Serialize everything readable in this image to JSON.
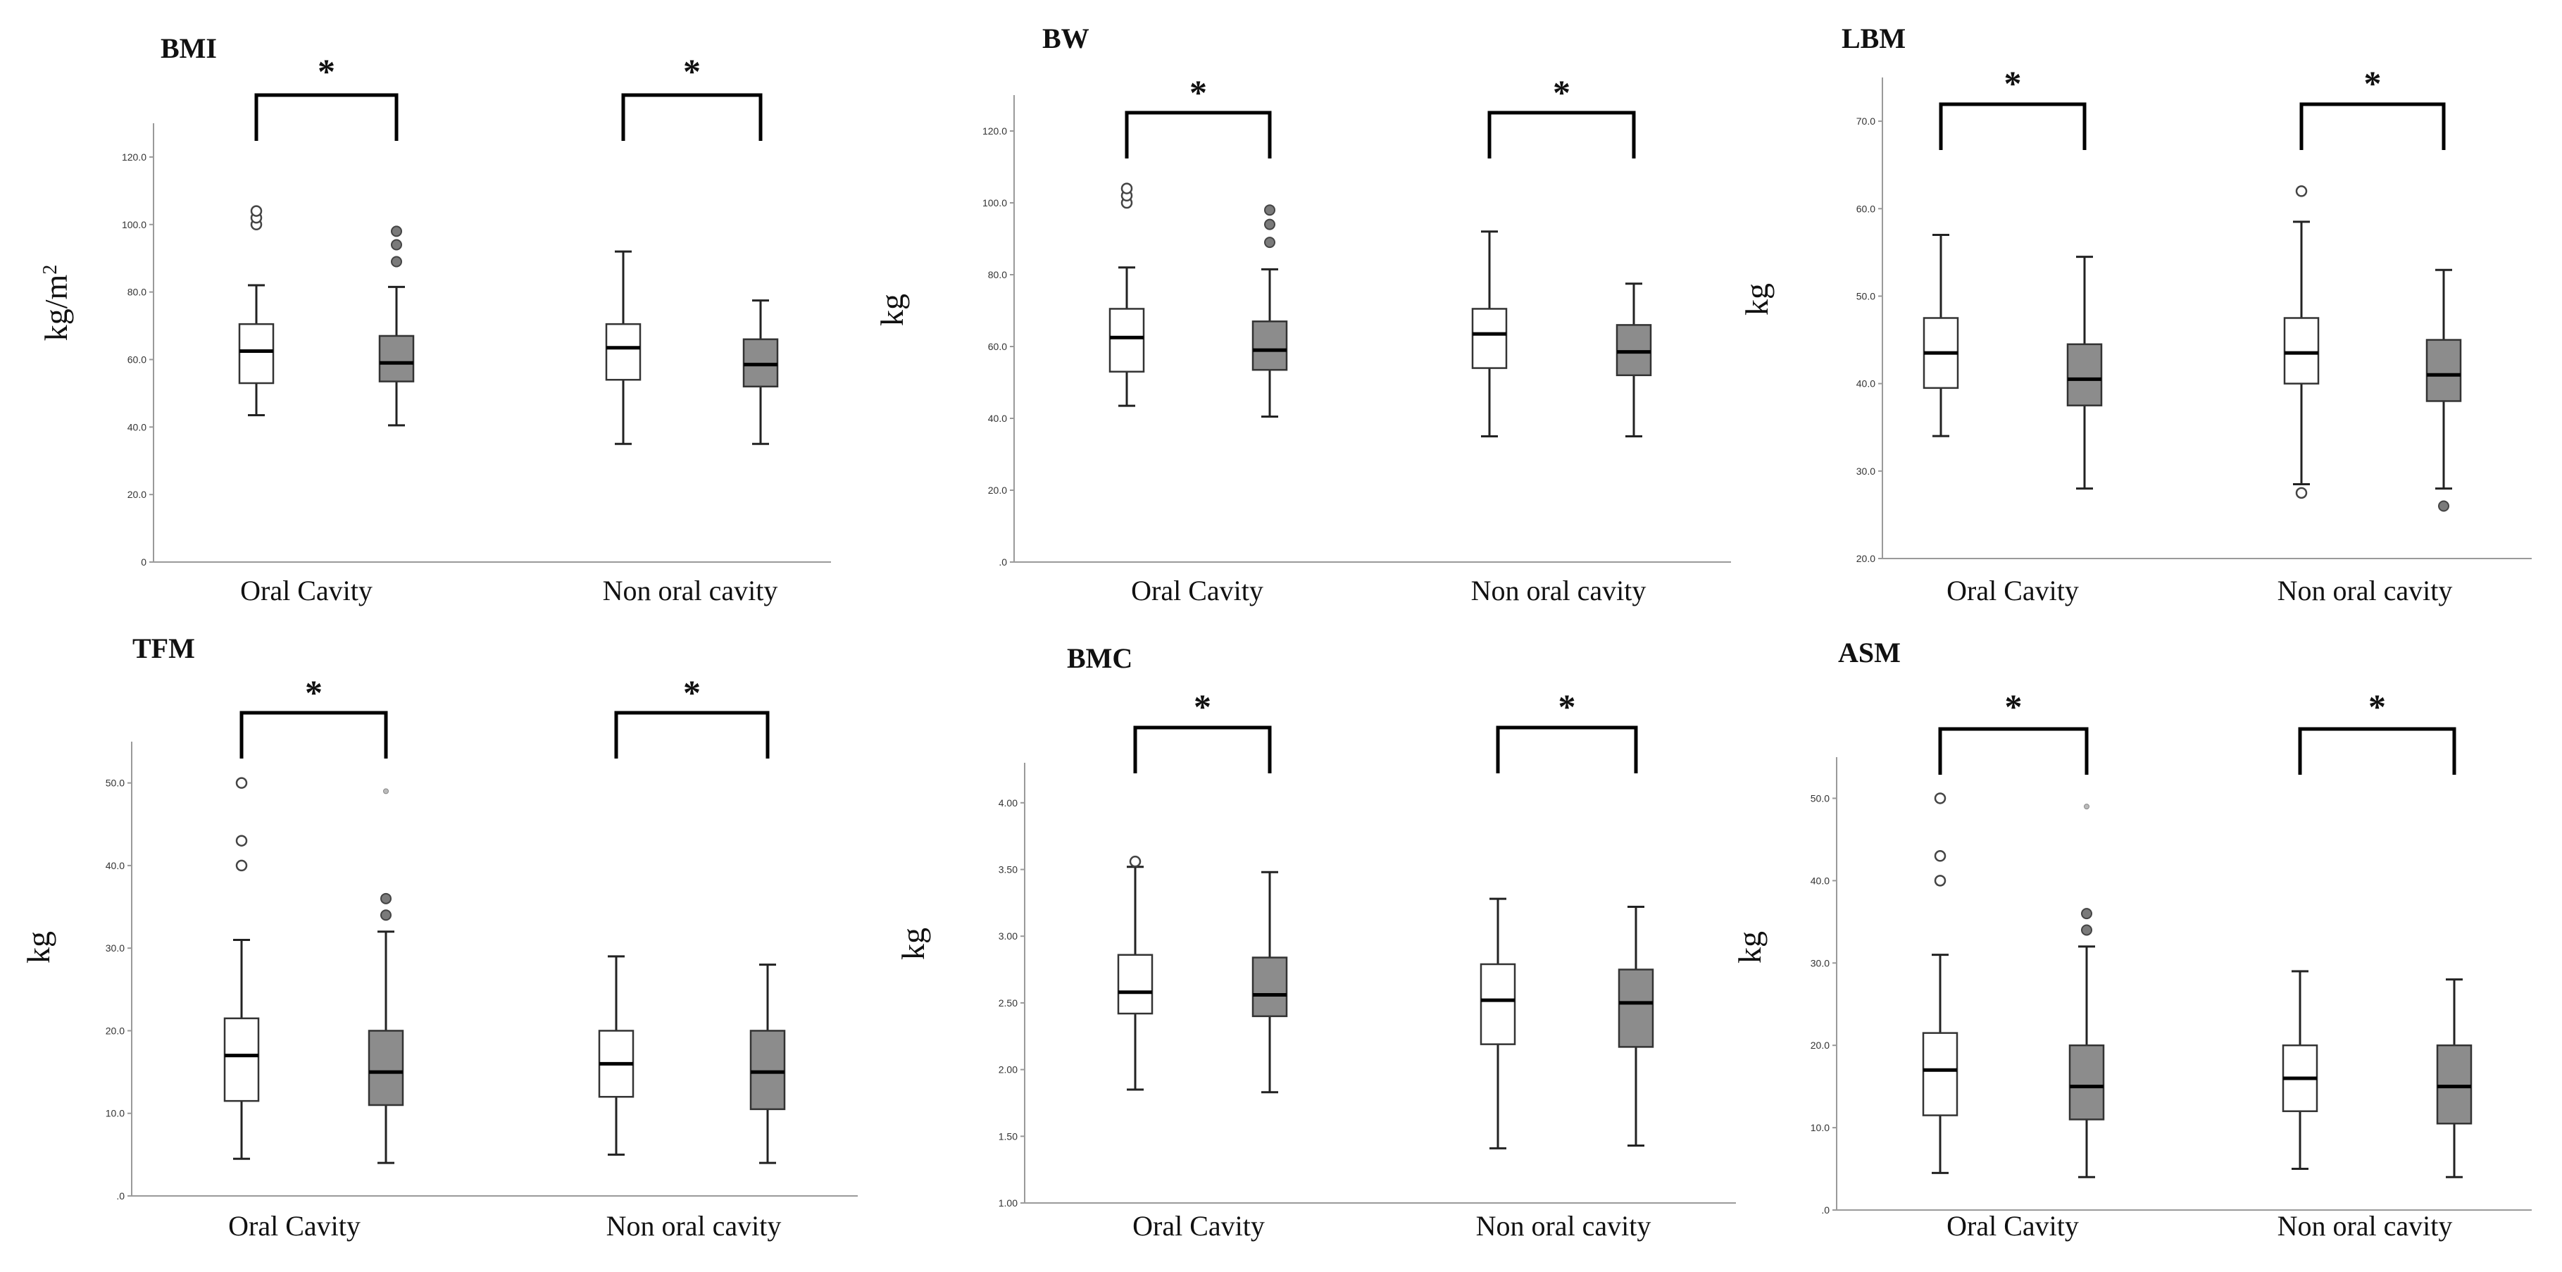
{
  "chart_data": [
    {
      "type": "box",
      "title": "BMI",
      "ylabel": "kg/m",
      "ylabel_sup": "2",
      "ylim": [
        0,
        130
      ],
      "yticks": [
        0,
        20,
        40,
        60,
        80,
        100,
        120
      ],
      "ytick_labels": [
        "0",
        "20.0",
        "40.0",
        "60.0",
        "80.0",
        "100.0",
        "120.0"
      ],
      "categories": [
        "Oral Cavity",
        "Non oral cavity"
      ],
      "significance": [
        "*",
        "*"
      ],
      "boxes": [
        {
          "group": "Oral Cavity",
          "shade": "light",
          "min": 43.5,
          "q1": 53,
          "median": 62.5,
          "q3": 70.5,
          "max": 82,
          "outliers": [
            100,
            102,
            104
          ],
          "outlier_style": "open"
        },
        {
          "group": "Oral Cavity",
          "shade": "dark",
          "min": 40.5,
          "q1": 53.5,
          "median": 59,
          "q3": 67,
          "max": 81.5,
          "outliers": [
            89,
            94,
            98
          ],
          "outlier_style": "filled"
        },
        {
          "group": "Non oral cavity",
          "shade": "light",
          "min": 35,
          "q1": 54,
          "median": 63.5,
          "q3": 70.5,
          "max": 92,
          "outliers": [],
          "outlier_style": "open"
        },
        {
          "group": "Non oral cavity",
          "shade": "dark",
          "min": 35,
          "q1": 52,
          "median": 58.5,
          "q3": 66,
          "max": 77.5,
          "outliers": [],
          "outlier_style": "filled"
        }
      ]
    },
    {
      "type": "box",
      "title": "BW",
      "ylabel": "kg",
      "ylabel_sup": "",
      "ylim": [
        0,
        130
      ],
      "yticks": [
        0,
        20,
        40,
        60,
        80,
        100,
        120
      ],
      "ytick_labels": [
        ".0",
        "20.0",
        "40.0",
        "60.0",
        "80.0",
        "100.0",
        "120.0"
      ],
      "categories": [
        "Oral Cavity",
        "Non oral cavity"
      ],
      "significance": [
        "*",
        "*"
      ],
      "boxes": [
        {
          "group": "Oral Cavity",
          "shade": "light",
          "min": 43.5,
          "q1": 53,
          "median": 62.5,
          "q3": 70.5,
          "max": 82,
          "outliers": [
            100,
            102,
            104
          ],
          "outlier_style": "open"
        },
        {
          "group": "Oral Cavity",
          "shade": "dark",
          "min": 40.5,
          "q1": 53.5,
          "median": 59,
          "q3": 67,
          "max": 81.5,
          "outliers": [
            89,
            94,
            98
          ],
          "outlier_style": "filled"
        },
        {
          "group": "Non oral cavity",
          "shade": "light",
          "min": 35,
          "q1": 54,
          "median": 63.5,
          "q3": 70.5,
          "max": 92,
          "outliers": [],
          "outlier_style": "open"
        },
        {
          "group": "Non oral cavity",
          "shade": "dark",
          "min": 35,
          "q1": 52,
          "median": 58.5,
          "q3": 66,
          "max": 77.5,
          "outliers": [],
          "outlier_style": "filled"
        }
      ]
    },
    {
      "type": "box",
      "title": "LBM",
      "ylabel": "kg",
      "ylabel_sup": "",
      "ylim": [
        20,
        75
      ],
      "yticks": [
        20,
        30,
        40,
        50,
        60,
        70
      ],
      "ytick_labels": [
        "20.0",
        "30.0",
        "40.0",
        "50.0",
        "60.0",
        "70.0"
      ],
      "categories": [
        "Oral Cavity",
        "Non oral cavity"
      ],
      "significance": [
        "*",
        "*"
      ],
      "boxes": [
        {
          "group": "Oral Cavity",
          "shade": "light",
          "min": 34,
          "q1": 39.5,
          "median": 43.5,
          "q3": 47.5,
          "max": 57,
          "outliers": [],
          "outlier_style": "open"
        },
        {
          "group": "Oral Cavity",
          "shade": "dark",
          "min": 28,
          "q1": 37.5,
          "median": 40.5,
          "q3": 44.5,
          "max": 54.5,
          "outliers": [],
          "outlier_style": "filled"
        },
        {
          "group": "Non oral cavity",
          "shade": "light",
          "min": 28.5,
          "q1": 40,
          "median": 43.5,
          "q3": 47.5,
          "max": 58.5,
          "outliers": [
            27.5,
            62
          ],
          "outlier_style": "open"
        },
        {
          "group": "Non oral cavity",
          "shade": "dark",
          "min": 28,
          "q1": 38,
          "median": 41,
          "q3": 45,
          "max": 53,
          "outliers": [
            26
          ],
          "outlier_style": "filled"
        }
      ]
    },
    {
      "type": "box",
      "title": "TFM",
      "ylabel": "kg",
      "ylabel_sup": "",
      "ylim": [
        0,
        55
      ],
      "yticks": [
        0,
        10,
        20,
        30,
        40,
        50
      ],
      "ytick_labels": [
        ".0",
        "10.0",
        "20.0",
        "30.0",
        "40.0",
        "50.0"
      ],
      "categories": [
        "Oral Cavity",
        "Non oral cavity"
      ],
      "significance": [
        "*",
        "*"
      ],
      "boxes": [
        {
          "group": "Oral Cavity",
          "shade": "light",
          "min": 4.5,
          "q1": 11.5,
          "median": 17,
          "q3": 21.5,
          "max": 31,
          "outliers": [
            40,
            43,
            50
          ],
          "outlier_style": "open"
        },
        {
          "group": "Oral Cavity",
          "shade": "dark",
          "min": 4,
          "q1": 11,
          "median": 15,
          "q3": 20,
          "max": 32,
          "outliers": [
            34,
            36
          ],
          "outlier_style": "filled",
          "faint_outliers": [
            49
          ]
        },
        {
          "group": "Non oral cavity",
          "shade": "light",
          "min": 5,
          "q1": 12,
          "median": 16,
          "q3": 20,
          "max": 29,
          "outliers": [],
          "outlier_style": "open"
        },
        {
          "group": "Non oral cavity",
          "shade": "dark",
          "min": 4,
          "q1": 10.5,
          "median": 15,
          "q3": 20,
          "max": 28,
          "outliers": [],
          "outlier_style": "filled"
        }
      ]
    },
    {
      "type": "box",
      "title": "BMC",
      "ylabel": "kg",
      "ylabel_sup": "",
      "ylim": [
        1.0,
        4.3
      ],
      "yticks": [
        1.0,
        1.5,
        2.0,
        2.5,
        3.0,
        3.5,
        4.0
      ],
      "ytick_labels": [
        "1.00",
        "1.50",
        "2.00",
        "2.50",
        "3.00",
        "3.50",
        "4.00"
      ],
      "categories": [
        "Oral Cavity",
        "Non oral cavity"
      ],
      "significance": [
        "*",
        "*"
      ],
      "boxes": [
        {
          "group": "Oral Cavity",
          "shade": "light",
          "min": 1.85,
          "q1": 2.42,
          "median": 2.58,
          "q3": 2.86,
          "max": 3.52,
          "outliers": [
            3.56
          ],
          "outlier_style": "open"
        },
        {
          "group": "Oral Cavity",
          "shade": "dark",
          "min": 1.83,
          "q1": 2.4,
          "median": 2.56,
          "q3": 2.84,
          "max": 3.48,
          "outliers": [],
          "outlier_style": "filled"
        },
        {
          "group": "Non oral cavity",
          "shade": "light",
          "min": 1.41,
          "q1": 2.19,
          "median": 2.52,
          "q3": 2.79,
          "max": 3.28,
          "outliers": [],
          "outlier_style": "open"
        },
        {
          "group": "Non oral cavity",
          "shade": "dark",
          "min": 1.43,
          "q1": 2.17,
          "median": 2.5,
          "q3": 2.75,
          "max": 3.22,
          "outliers": [],
          "outlier_style": "filled"
        }
      ]
    },
    {
      "type": "box",
      "title": "ASM",
      "ylabel": "kg",
      "ylabel_sup": "",
      "ylim": [
        0,
        55
      ],
      "yticks": [
        0,
        10,
        20,
        30,
        40,
        50
      ],
      "ytick_labels": [
        ".0",
        "10.0",
        "20.0",
        "30.0",
        "40.0",
        "50.0"
      ],
      "categories": [
        "Oral Cavity",
        "Non oral cavity"
      ],
      "significance": [
        "*",
        "*"
      ],
      "boxes": [
        {
          "group": "Oral Cavity",
          "shade": "light",
          "min": 4.5,
          "q1": 11.5,
          "median": 17,
          "q3": 21.5,
          "max": 31,
          "outliers": [
            40,
            43,
            50
          ],
          "outlier_style": "open"
        },
        {
          "group": "Oral Cavity",
          "shade": "dark",
          "min": 4,
          "q1": 11,
          "median": 15,
          "q3": 20,
          "max": 32,
          "outliers": [
            34,
            36
          ],
          "outlier_style": "filled",
          "faint_outliers": [
            49
          ]
        },
        {
          "group": "Non oral cavity",
          "shade": "light",
          "min": 5,
          "q1": 12,
          "median": 16,
          "q3": 20,
          "max": 29,
          "outliers": [],
          "outlier_style": "open"
        },
        {
          "group": "Non oral cavity",
          "shade": "dark",
          "min": 4,
          "q1": 10.5,
          "median": 15,
          "q3": 20,
          "max": 28,
          "outliers": [],
          "outlier_style": "filled"
        }
      ]
    }
  ]
}
